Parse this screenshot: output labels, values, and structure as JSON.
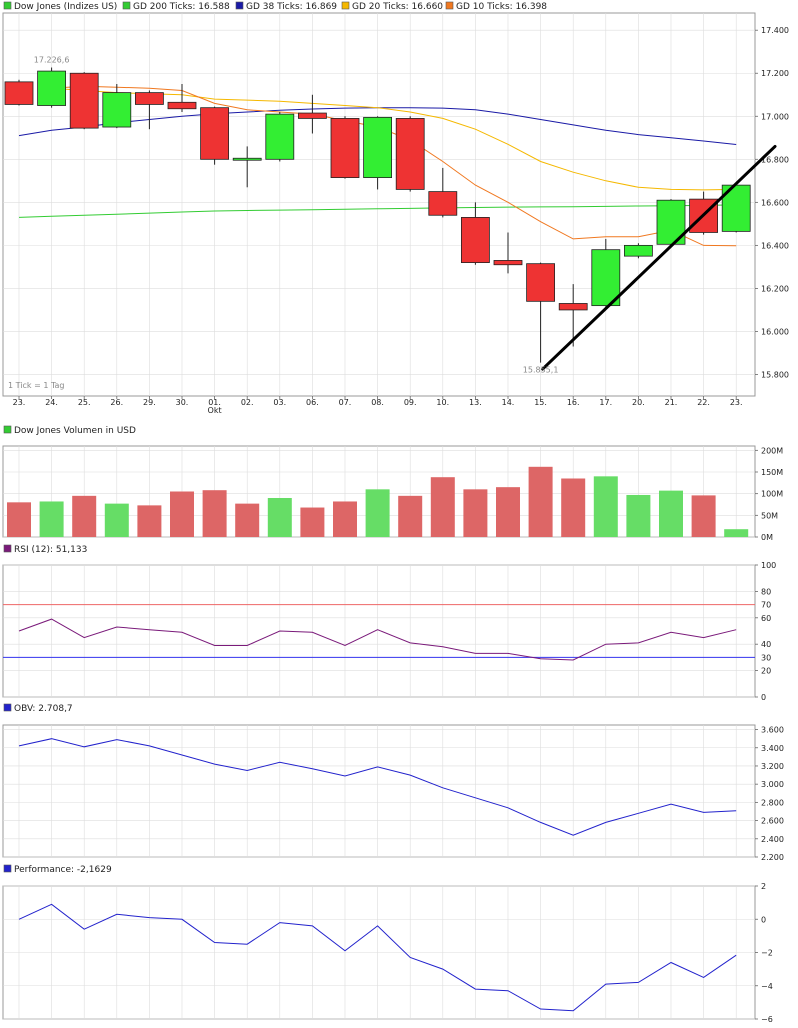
{
  "legend_main": [
    {
      "label": "Dow Jones (Indizes US)",
      "color": "#33cc33"
    },
    {
      "label": "GD 200 Ticks: 16.588",
      "color": "#33cc33"
    },
    {
      "label": "GD 38 Ticks: 16.869",
      "color": "#1a1aa6"
    },
    {
      "label": "GD 20 Ticks: 16.660",
      "color": "#f5b800"
    },
    {
      "label": "GD 10 Ticks: 16.398",
      "color": "#f07820"
    }
  ],
  "tick_note": "1 Tick = 1 Tag",
  "month_label": "Okt",
  "annotations": {
    "high": "17.226,6",
    "low": "15.855,1"
  },
  "colors": {
    "up": "#33ee33",
    "down": "#ee3333",
    "ma200": "#33cc33",
    "ma38": "#1a1aa6",
    "ma20": "#f5b800",
    "ma10": "#f07820",
    "vol_up": "#66dd66",
    "vol_down": "#dd6666",
    "rsi": "#7a1a7a",
    "rsi_70": "#ee6666",
    "rsi_30": "#3333ee",
    "obv": "#2222cc",
    "perf": "#2222cc",
    "trend": "#000000",
    "grid": "#dddddd"
  },
  "chart_data": [
    {
      "type": "candlestick",
      "title": "Dow Jones (Indizes US)",
      "categories": [
        "23.",
        "24.",
        "25.",
        "26.",
        "29.",
        "30.",
        "01.",
        "02.",
        "03.",
        "06.",
        "07.",
        "08.",
        "09.",
        "10.",
        "13.",
        "14.",
        "15.",
        "16.",
        "17.",
        "20.",
        "21.",
        "22.",
        "23."
      ],
      "ylim": [
        15700,
        17480
      ],
      "yticks": [
        15800,
        16000,
        16200,
        16400,
        16600,
        16800,
        17000,
        17200,
        17400
      ],
      "ytick_labels": [
        "15.800",
        "16.000",
        "16.200",
        "16.400",
        "16.600",
        "16.800",
        "17.000",
        "17.200",
        "17.400"
      ],
      "ohlc": [
        [
          17160,
          17170,
          17050,
          17055
        ],
        [
          17050,
          17226.6,
          17040,
          17210
        ],
        [
          17200,
          17205,
          16940,
          16945
        ],
        [
          16950,
          17150,
          16945,
          17110
        ],
        [
          17110,
          17120,
          16940,
          17055
        ],
        [
          17065,
          17150,
          17020,
          17035
        ],
        [
          17040,
          17045,
          16775,
          16800
        ],
        [
          16805,
          16860,
          16670,
          16805
        ],
        [
          16800,
          17020,
          16790,
          17010
        ],
        [
          17015,
          17100,
          16920,
          16990
        ],
        [
          16990,
          17000,
          16710,
          16715
        ],
        [
          16715,
          17000,
          16660,
          16995
        ],
        [
          16990,
          17000,
          16650,
          16660
        ],
        [
          16650,
          16760,
          16530,
          16540
        ],
        [
          16530,
          16600,
          16310,
          16320
        ],
        [
          16330,
          16460,
          16270,
          16310
        ],
        [
          16315,
          16320,
          15855.1,
          16140
        ],
        [
          16130,
          16220,
          15930,
          16100
        ],
        [
          16120,
          16430,
          16115,
          16380
        ],
        [
          16350,
          16410,
          16340,
          16400
        ],
        [
          16405,
          16615,
          16400,
          16610
        ],
        [
          16615,
          16650,
          16450,
          16460
        ],
        [
          16465,
          16690,
          16460,
          16680
        ]
      ],
      "ma200": [
        16530,
        16535,
        16540,
        16545,
        16550,
        16555,
        16560,
        16562,
        16564,
        16566,
        16568,
        16570,
        16572,
        16574,
        16576,
        16578,
        16579,
        16580,
        16581,
        16583,
        16584,
        16586,
        16588
      ],
      "ma38": [
        16910,
        16935,
        16950,
        16970,
        16985,
        17000,
        17012,
        17020,
        17028,
        17034,
        17038,
        17040,
        17040,
        17038,
        17030,
        17010,
        16985,
        16960,
        16935,
        16915,
        16900,
        16885,
        16869
      ],
      "ma20": [
        null,
        17130,
        17120,
        17110,
        17105,
        17100,
        17080,
        17075,
        17070,
        17060,
        17050,
        17040,
        17020,
        16990,
        16940,
        16870,
        16790,
        16740,
        16700,
        16670,
        16660,
        16658,
        16660
      ],
      "ma10": [
        null,
        17130,
        17140,
        17135,
        17130,
        17120,
        17060,
        17030,
        17020,
        17010,
        16980,
        16950,
        16890,
        16790,
        16680,
        16600,
        16510,
        16430,
        16440,
        16440,
        16470,
        16400,
        16398
      ],
      "trendline": {
        "from": [
          16,
          15825
        ],
        "to": [
          22.7,
          16860
        ]
      }
    },
    {
      "type": "bar",
      "title": "Dow Jones Volumen in USD",
      "categories": [
        "23.",
        "24.",
        "25.",
        "26.",
        "29.",
        "30.",
        "01.",
        "02.",
        "03.",
        "06.",
        "07.",
        "08.",
        "09.",
        "10.",
        "13.",
        "14.",
        "15.",
        "16.",
        "17.",
        "20.",
        "21.",
        "22.",
        "23."
      ],
      "values": [
        80,
        82,
        95,
        77,
        73,
        105,
        108,
        77,
        90,
        68,
        82,
        110,
        95,
        138,
        110,
        115,
        162,
        135,
        140,
        97,
        107,
        96,
        18
      ],
      "direction": [
        "down",
        "up",
        "down",
        "up",
        "down",
        "down",
        "down",
        "down",
        "up",
        "down",
        "down",
        "up",
        "down",
        "down",
        "down",
        "down",
        "down",
        "down",
        "up",
        "up",
        "up",
        "down",
        "up"
      ],
      "ylim": [
        0,
        210
      ],
      "yticks": [
        0,
        50,
        100,
        150,
        200
      ],
      "ytick_labels": [
        "0M",
        "50M",
        "100M",
        "150M",
        "200M"
      ]
    },
    {
      "type": "line",
      "title": "RSI (12): 51,133",
      "categories": [
        "23.",
        "24.",
        "25.",
        "26.",
        "29.",
        "30.",
        "01.",
        "02.",
        "03.",
        "06.",
        "07.",
        "08.",
        "09.",
        "10.",
        "13.",
        "14.",
        "15.",
        "16.",
        "17.",
        "20.",
        "21.",
        "22.",
        "23."
      ],
      "values": [
        50,
        59,
        45,
        53,
        51,
        49,
        39,
        39,
        50,
        49,
        39,
        51,
        41,
        38,
        33,
        33,
        29,
        28,
        40,
        41,
        49,
        45,
        51
      ],
      "ylim": [
        0,
        100
      ],
      "yticks": [
        0,
        20,
        40,
        60,
        80,
        100
      ],
      "ytick_labels": [
        "0",
        "20",
        "40",
        "60",
        "80",
        "100"
      ],
      "reference_lines": [
        70,
        30
      ],
      "reference_labels": [
        "70",
        "30"
      ]
    },
    {
      "type": "line",
      "title": "OBV: 2.708,7",
      "categories": [
        "23.",
        "24.",
        "25.",
        "26.",
        "29.",
        "30.",
        "01.",
        "02.",
        "03.",
        "06.",
        "07.",
        "08.",
        "09.",
        "10.",
        "13.",
        "14.",
        "15.",
        "16.",
        "17.",
        "20.",
        "21.",
        "22.",
        "23."
      ],
      "values": [
        3420,
        3500,
        3410,
        3490,
        3420,
        3320,
        3220,
        3150,
        3240,
        3170,
        3090,
        3190,
        3100,
        2960,
        2850,
        2740,
        2580,
        2440,
        2580,
        2680,
        2780,
        2690,
        2708.7
      ],
      "ylim": [
        2200,
        3650
      ],
      "yticks": [
        2200,
        2400,
        2600,
        2800,
        3000,
        3200,
        3400,
        3600
      ],
      "ytick_labels": [
        "2.200",
        "2.400",
        "2.600",
        "2.800",
        "3.000",
        "3.200",
        "3.400",
        "3.600"
      ]
    },
    {
      "type": "line",
      "title": "Performance: -2,1629",
      "categories": [
        "23.",
        "24.",
        "25.",
        "26.",
        "29.",
        "30.",
        "01.",
        "02.",
        "03.",
        "06.",
        "07.",
        "08.",
        "09.",
        "10.",
        "13.",
        "14.",
        "15.",
        "16.",
        "17.",
        "20.",
        "21.",
        "22.",
        "23."
      ],
      "values": [
        0,
        0.9,
        -0.6,
        0.3,
        0.1,
        0,
        -1.4,
        -1.5,
        -0.2,
        -0.4,
        -1.9,
        -0.4,
        -2.3,
        -3,
        -4.2,
        -4.3,
        -5.4,
        -5.5,
        -3.9,
        -3.8,
        -2.6,
        -3.5,
        -2.1629
      ],
      "ylim": [
        -6,
        2
      ],
      "yticks": [
        -6,
        -4,
        -2,
        0,
        2
      ],
      "ytick_labels": [
        "−6",
        "−4",
        "−2",
        "0",
        "2"
      ]
    }
  ]
}
